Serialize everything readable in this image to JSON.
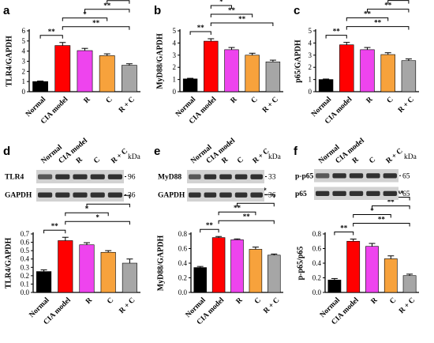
{
  "colors": {
    "Normal": "#000000",
    "CIA model": "#ff0000",
    "R": "#ee44ee",
    "C": "#f7a23c",
    "R + C": "#a6a6a6"
  },
  "chart_data": [
    {
      "panel": "a",
      "type": "bar",
      "ylabel": "TLR4/GAPDH",
      "categories": [
        "Normal",
        "CIA model",
        "R",
        "C",
        "R + C"
      ],
      "values": [
        1.0,
        4.55,
        4.05,
        3.55,
        2.6
      ],
      "errors": [
        0.05,
        0.3,
        0.22,
        0.18,
        0.15
      ],
      "ylim": [
        0,
        6
      ],
      "yticks": [
        "0",
        "1",
        "2",
        "3",
        "4",
        "5",
        "6"
      ],
      "significance": [
        {
          "from": 0,
          "to": 1,
          "label": "**"
        },
        {
          "from": 1,
          "to": 4,
          "label": "**"
        },
        {
          "from": 1,
          "to": 3,
          "label": "*"
        },
        {
          "from": 2,
          "to": 4,
          "label": "**"
        },
        {
          "from": 3,
          "to": 4,
          "label": "**"
        }
      ]
    },
    {
      "panel": "b",
      "type": "bar",
      "ylabel": "MyD88/GAPDH",
      "categories": [
        "Normal",
        "CIA model",
        "R",
        "C",
        "R + C"
      ],
      "values": [
        1.05,
        4.15,
        3.45,
        3.0,
        2.45
      ],
      "errors": [
        0.05,
        0.2,
        0.18,
        0.16,
        0.14
      ],
      "ylim": [
        0,
        5
      ],
      "yticks": [
        "0",
        "1",
        "2",
        "3",
        "4",
        "5"
      ],
      "significance": [
        {
          "from": 0,
          "to": 1,
          "label": "**"
        },
        {
          "from": 1,
          "to": 4,
          "label": "**"
        },
        {
          "from": 1,
          "to": 3,
          "label": "**"
        },
        {
          "from": 1,
          "to": 2,
          "label": "*"
        },
        {
          "from": 2,
          "to": 4,
          "label": "**"
        },
        {
          "from": 3,
          "to": 4,
          "label": "*"
        }
      ]
    },
    {
      "panel": "c",
      "type": "bar",
      "ylabel": "p65/GAPDH",
      "categories": [
        "Normal",
        "CIA model",
        "R",
        "C",
        "R + C"
      ],
      "values": [
        1.0,
        3.85,
        3.45,
        3.05,
        2.55
      ],
      "errors": [
        0.04,
        0.2,
        0.18,
        0.15,
        0.14
      ],
      "ylim": [
        0,
        5
      ],
      "yticks": [
        "0",
        "1",
        "2",
        "3",
        "4",
        "5"
      ],
      "significance": [
        {
          "from": 0,
          "to": 1,
          "label": "**"
        },
        {
          "from": 1,
          "to": 4,
          "label": "**"
        },
        {
          "from": 1,
          "to": 3,
          "label": "**"
        },
        {
          "from": 2,
          "to": 4,
          "label": "**"
        },
        {
          "from": 3,
          "to": 4,
          "label": "*"
        }
      ]
    },
    {
      "panel": "d",
      "type": "bar",
      "ylabel": "TLR4/GAPDH",
      "categories": [
        "Normal",
        "CIA model",
        "R",
        "C",
        "R + C"
      ],
      "values": [
        0.25,
        0.62,
        0.57,
        0.48,
        0.35
      ],
      "errors": [
        0.02,
        0.04,
        0.025,
        0.02,
        0.05
      ],
      "ylim": [
        0,
        0.7
      ],
      "yticks": [
        "0.0",
        "0.1",
        "0.2",
        "0.3",
        "0.4",
        "0.5",
        "0.6",
        "0.7"
      ],
      "significance": [
        {
          "from": 0,
          "to": 1,
          "label": "**"
        },
        {
          "from": 1,
          "to": 4,
          "label": "*"
        },
        {
          "from": 1,
          "to": 3,
          "label": "*"
        },
        {
          "from": 2,
          "to": 4,
          "label": "*"
        },
        {
          "from": 3,
          "to": 4,
          "label": "**"
        }
      ],
      "blot": {
        "lanes": [
          "Normal",
          "CIA model",
          "R",
          "C",
          "R + C"
        ],
        "unit": "kDa",
        "rows": [
          {
            "label": "TLR4",
            "size": "96"
          },
          {
            "label": "GAPDH",
            "size": "36"
          }
        ]
      }
    },
    {
      "panel": "e",
      "type": "bar",
      "ylabel": "MyD88/GAPDH",
      "categories": [
        "Normal",
        "CIA model",
        "R",
        "C",
        "R + C"
      ],
      "values": [
        0.34,
        0.75,
        0.72,
        0.59,
        0.51
      ],
      "errors": [
        0.015,
        0.015,
        0.012,
        0.03,
        0.015
      ],
      "ylim": [
        0,
        0.8
      ],
      "yticks": [
        "0.0",
        "0.2",
        "0.4",
        "0.6",
        "0.8"
      ],
      "significance": [
        {
          "from": 0,
          "to": 1,
          "label": "**"
        },
        {
          "from": 1,
          "to": 4,
          "label": "**"
        },
        {
          "from": 1,
          "to": 3,
          "label": "**"
        },
        {
          "from": 2,
          "to": 4,
          "label": "**"
        },
        {
          "from": 3,
          "to": 4,
          "label": "*"
        }
      ],
      "blot": {
        "lanes": [
          "Normal",
          "CIA model",
          "R",
          "C",
          "R + C"
        ],
        "unit": "kDa",
        "rows": [
          {
            "label": "MyD88",
            "size": "33"
          },
          {
            "label": "GAPDH",
            "size": "36"
          }
        ]
      }
    },
    {
      "panel": "f",
      "type": "bar",
      "ylabel": "p-p65/p65",
      "categories": [
        "Normal",
        "CIA model",
        "R",
        "C",
        "R + C"
      ],
      "values": [
        0.17,
        0.7,
        0.63,
        0.46,
        0.23
      ],
      "errors": [
        0.02,
        0.03,
        0.04,
        0.04,
        0.02
      ],
      "ylim": [
        0,
        0.8
      ],
      "yticks": [
        "0.0",
        "0.2",
        "0.4",
        "0.6",
        "0.8"
      ],
      "significance": [
        {
          "from": 0,
          "to": 1,
          "label": "**"
        },
        {
          "from": 1,
          "to": 4,
          "label": "**"
        },
        {
          "from": 1,
          "to": 3,
          "label": "*"
        },
        {
          "from": 2,
          "to": 4,
          "label": "**"
        },
        {
          "from": 3,
          "to": 4,
          "label": "**"
        }
      ],
      "blot": {
        "lanes": [
          "Normal",
          "CIA model",
          "R",
          "C",
          "R + C"
        ],
        "unit": "kDa",
        "rows": [
          {
            "label": "p-p65",
            "size": "65"
          },
          {
            "label": "p65",
            "size": "65"
          }
        ]
      }
    }
  ]
}
